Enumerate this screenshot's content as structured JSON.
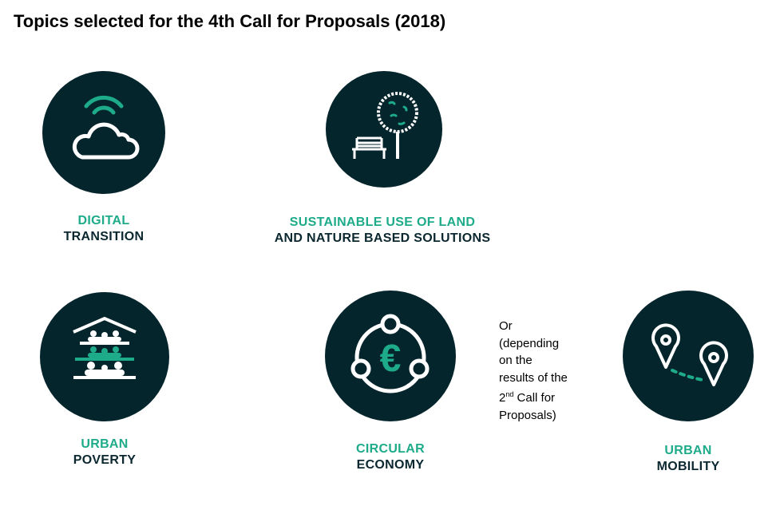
{
  "title": "Topics selected for the 4th Call for Proposals (2018)",
  "colors": {
    "dark": "#05252c",
    "accent": "#1dab8a"
  },
  "topics": [
    {
      "icon": "cloud-wifi-icon",
      "line1": "DIGITAL",
      "line2": "TRANSITION"
    },
    {
      "icon": "tree-bench-icon",
      "line1": "SUSTAINABLE USE OF LAND",
      "line2": "AND NATURE BASED SOLUTIONS"
    },
    {
      "icon": "people-shelter-icon",
      "line1": "URBAN",
      "line2": "POVERTY"
    },
    {
      "icon": "euro-cycle-icon",
      "line1": "CIRCULAR",
      "line2": "ECONOMY"
    },
    {
      "icon": "map-pins-icon",
      "line1": "URBAN",
      "line2": "MOBILITY"
    }
  ],
  "note": {
    "l1": "Or",
    "l2": "(depending",
    "l3": "on the",
    "l4": "results of the",
    "l5a": "2",
    "l5sup": "nd",
    "l5b": " Call for",
    "l6": "Proposals)"
  }
}
